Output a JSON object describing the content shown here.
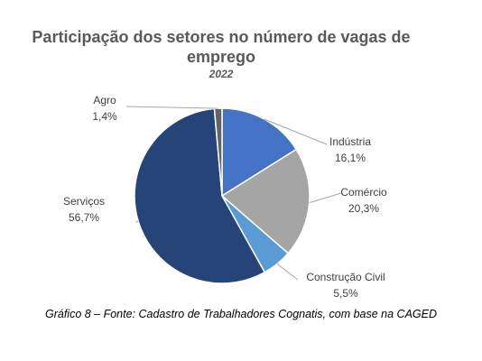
{
  "chart_data": {
    "type": "pie",
    "title": "Participação dos setores no número de vagas de emprego",
    "subtitle": "2022",
    "slices": [
      {
        "label": "Indústria",
        "value": 16.1,
        "display": "16,1%",
        "color": "#4472C4"
      },
      {
        "label": "Comércio",
        "value": 20.3,
        "display": "20,3%",
        "color": "#A5A5A5"
      },
      {
        "label": "Construção Civil",
        "value": 5.5,
        "display": "5,5%",
        "color": "#5B9BD5"
      },
      {
        "label": "Serviços",
        "value": 56.7,
        "display": "56,7%",
        "color": "#264478"
      },
      {
        "label": "Agro",
        "value": 1.4,
        "display": "1,4%",
        "color": "#636363"
      }
    ]
  },
  "caption": "Gráfico 8 – Fonte: Cadastro de Trabalhadores Cognatis, com base na CAGED"
}
